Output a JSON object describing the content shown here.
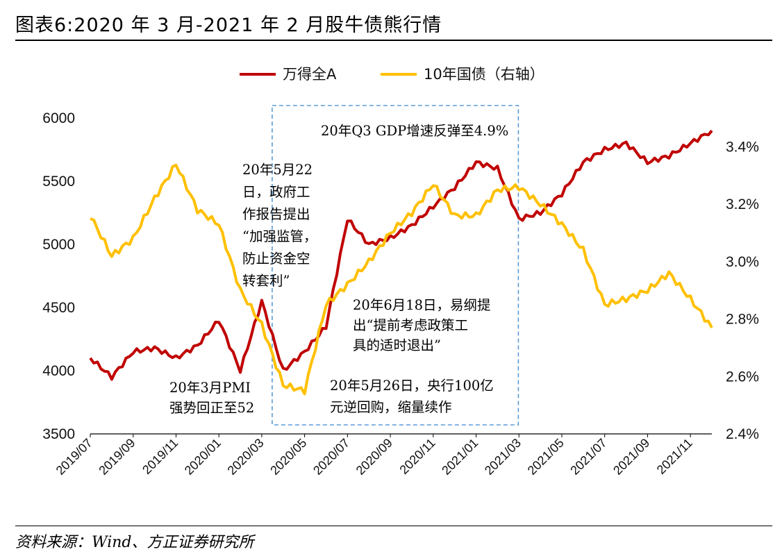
{
  "title": "图表6:2020 年 3 月-2021 年 2 月股牛债熊行情",
  "source": "资料来源：Wind、方正证券研究所",
  "colors": {
    "wind_all_a": "#C00000",
    "bond_10y": "#FFC000",
    "box": "#5B9BD5"
  },
  "chart_data": {
    "type": "line",
    "x": [
      "2019/07",
      "2019/08",
      "2019/09",
      "2019/10",
      "2019/11",
      "2019/12",
      "2020/01",
      "2020/02",
      "2020/03",
      "2020/04",
      "2020/05",
      "2020/06",
      "2020/07",
      "2020/08",
      "2020/09",
      "2020/10",
      "2020/11",
      "2020/12",
      "2021/01",
      "2021/02",
      "2021/03",
      "2021/04",
      "2021/05",
      "2021/06",
      "2021/07",
      "2021/08",
      "2021/09",
      "2021/10",
      "2021/11",
      "2021/12"
    ],
    "xticks": [
      "2019/07",
      "2019/09",
      "2019/11",
      "2020/01",
      "2020/03",
      "2020/05",
      "2020/07",
      "2020/09",
      "2020/11",
      "2021/01",
      "2021/03",
      "2021/05",
      "2021/07",
      "2021/09",
      "2021/11"
    ],
    "legend": [
      "万得全A",
      "10年国债（右轴）"
    ],
    "legend_position": "top-center",
    "y_left": {
      "ticks": [
        "3500",
        "4000",
        "4500",
        "5000",
        "5500",
        "6000"
      ],
      "ylim": [
        3500,
        6000
      ]
    },
    "y_right": {
      "ticks": [
        "2.4%",
        "2.6%",
        "2.8%",
        "3.0%",
        "3.2%",
        "3.4%"
      ],
      "ylim": [
        2.4,
        3.5
      ]
    },
    "series": [
      {
        "name": "万得全A",
        "axis": "left",
        "values": [
          4100,
          3950,
          4150,
          4180,
          4100,
          4200,
          4400,
          4000,
          4550,
          4000,
          4150,
          4350,
          5200,
          5000,
          5050,
          5150,
          5300,
          5450,
          5650,
          5600,
          5200,
          5250,
          5400,
          5650,
          5750,
          5800,
          5650,
          5700,
          5800,
          5900
        ]
      },
      {
        "name": "10年国债（右轴）",
        "axis": "right",
        "values": [
          3.16,
          3.02,
          3.08,
          3.22,
          3.34,
          3.18,
          3.13,
          2.9,
          2.78,
          2.57,
          2.55,
          2.85,
          2.92,
          3.0,
          3.1,
          3.17,
          3.27,
          3.16,
          3.16,
          3.25,
          3.26,
          3.2,
          3.13,
          3.04,
          2.85,
          2.87,
          2.9,
          2.96,
          2.87,
          2.77
        ]
      }
    ],
    "box": {
      "x_from": "2020/03",
      "x_to": "2021/02"
    },
    "annotations": [
      {
        "text": [
          "20年Q3 GDP增速反弹至4.9%"
        ]
      },
      {
        "text": [
          "20年5月22",
          "日，政府工",
          "作报告提出",
          "“加强监管，",
          "防止资金空",
          "转套利”"
        ]
      },
      {
        "text": [
          "20年6月18日，易纲提",
          "出“提前考虑政策工",
          "具的适时退出”"
        ]
      },
      {
        "text": [
          "20年3月PMI",
          "强势回正至52"
        ]
      },
      {
        "text": [
          "20年5月26日，央行100亿",
          "元逆回购，缩量续作"
        ]
      }
    ]
  }
}
